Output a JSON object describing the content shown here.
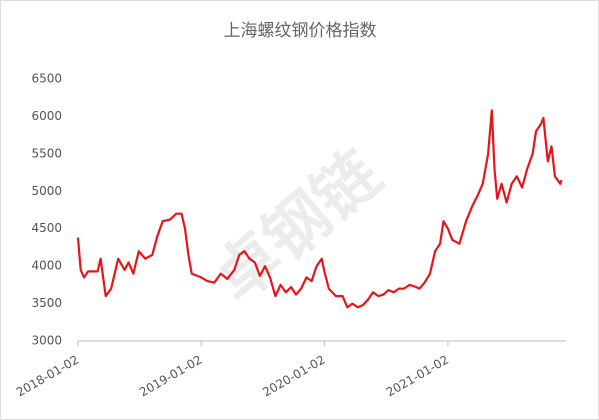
{
  "chart_data": {
    "type": "line",
    "title": "上海螺纹钢价格指数",
    "watermark": "卓钢链",
    "x": [
      "2018-01-02",
      "2018-01-10",
      "2018-01-20",
      "2018-02-01",
      "2018-03-01",
      "2018-03-10",
      "2018-03-25",
      "2018-04-10",
      "2018-05-01",
      "2018-05-20",
      "2018-06-01",
      "2018-06-15",
      "2018-07-01",
      "2018-07-20",
      "2018-08-10",
      "2018-08-25",
      "2018-09-10",
      "2018-10-01",
      "2018-10-20",
      "2018-11-05",
      "2018-11-15",
      "2018-11-25",
      "2018-12-05",
      "2019-01-02",
      "2019-01-20",
      "2019-02-10",
      "2019-03-01",
      "2019-03-20",
      "2019-04-10",
      "2019-04-25",
      "2019-05-10",
      "2019-05-25",
      "2019-06-10",
      "2019-06-25",
      "2019-07-10",
      "2019-07-25",
      "2019-08-10",
      "2019-08-25",
      "2019-09-10",
      "2019-09-25",
      "2019-10-10",
      "2019-10-25",
      "2019-11-10",
      "2019-11-25",
      "2019-12-10",
      "2019-12-25",
      "2020-01-02",
      "2020-01-15",
      "2020-02-05",
      "2020-02-25",
      "2020-03-10",
      "2020-03-25",
      "2020-04-10",
      "2020-04-25",
      "2020-05-10",
      "2020-05-25",
      "2020-06-10",
      "2020-06-25",
      "2020-07-10",
      "2020-07-25",
      "2020-08-10",
      "2020-08-25",
      "2020-09-10",
      "2020-09-25",
      "2020-10-10",
      "2020-10-25",
      "2020-11-10",
      "2020-11-25",
      "2020-12-10",
      "2020-12-20",
      "2021-01-02",
      "2021-01-15",
      "2021-02-05",
      "2021-02-25",
      "2021-03-15",
      "2021-04-01",
      "2021-04-15",
      "2021-05-01",
      "2021-05-12",
      "2021-05-20",
      "2021-05-28",
      "2021-06-10",
      "2021-06-25",
      "2021-07-10",
      "2021-07-25",
      "2021-08-10",
      "2021-08-25",
      "2021-09-10",
      "2021-09-20",
      "2021-10-05",
      "2021-10-12",
      "2021-10-25",
      "2021-11-05",
      "2021-11-15",
      "2021-12-01",
      "2021-12-05"
    ],
    "series": [
      {
        "color": "#e8141b",
        "values": [
          4380,
          3950,
          3850,
          3930,
          3930,
          4100,
          3600,
          3700,
          4100,
          3950,
          4050,
          3900,
          4200,
          4100,
          4150,
          4400,
          4600,
          4620,
          4700,
          4700,
          4500,
          4150,
          3900,
          3850,
          3800,
          3780,
          3900,
          3830,
          3950,
          4150,
          4200,
          4100,
          4050,
          3870,
          4000,
          3850,
          3600,
          3750,
          3650,
          3720,
          3620,
          3700,
          3850,
          3800,
          4000,
          4100,
          3930,
          3700,
          3600,
          3600,
          3450,
          3500,
          3450,
          3480,
          3550,
          3650,
          3600,
          3620,
          3680,
          3650,
          3700,
          3700,
          3750,
          3730,
          3700,
          3780,
          3900,
          4200,
          4300,
          4600,
          4500,
          4350,
          4300,
          4600,
          4800,
          4950,
          5100,
          5500,
          6080,
          5300,
          4900,
          5100,
          4850,
          5100,
          5200,
          5050,
          5300,
          5500,
          5800,
          5900,
          5980,
          5400,
          5600,
          5200,
          5100,
          5150
        ]
      }
    ],
    "xlim": [
      "2018-01-02",
      "2021-12-12"
    ],
    "xticks": [
      "2018-01-02",
      "2019-01-02",
      "2020-01-02",
      "2021-01-02"
    ],
    "ylim": [
      3000,
      6500
    ],
    "yticks": [
      3000,
      3500,
      4000,
      4500,
      5000,
      5500,
      6000,
      6500
    ]
  }
}
